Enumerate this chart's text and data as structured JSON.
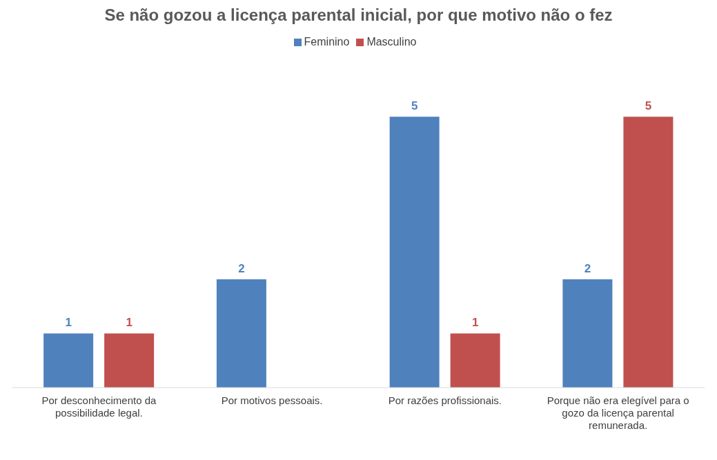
{
  "chart_data": {
    "type": "bar",
    "title": "Se não gozou a licença parental inicial, por que motivo não o fez",
    "categories": [
      "Por desconhecimento da possibilidade legal.",
      "Por motivos pessoais.",
      "Por razões profissionais.",
      "Porque não era elegível para o gozo da licença parental remunerada."
    ],
    "series": [
      {
        "name": "Feminino",
        "color": "#4f81bd",
        "values": [
          1,
          2,
          5,
          2
        ]
      },
      {
        "name": "Masculino",
        "color": "#c0504d",
        "values": [
          1,
          null,
          1,
          5
        ]
      }
    ],
    "data_labels": true,
    "legend": "top",
    "grid": false
  }
}
